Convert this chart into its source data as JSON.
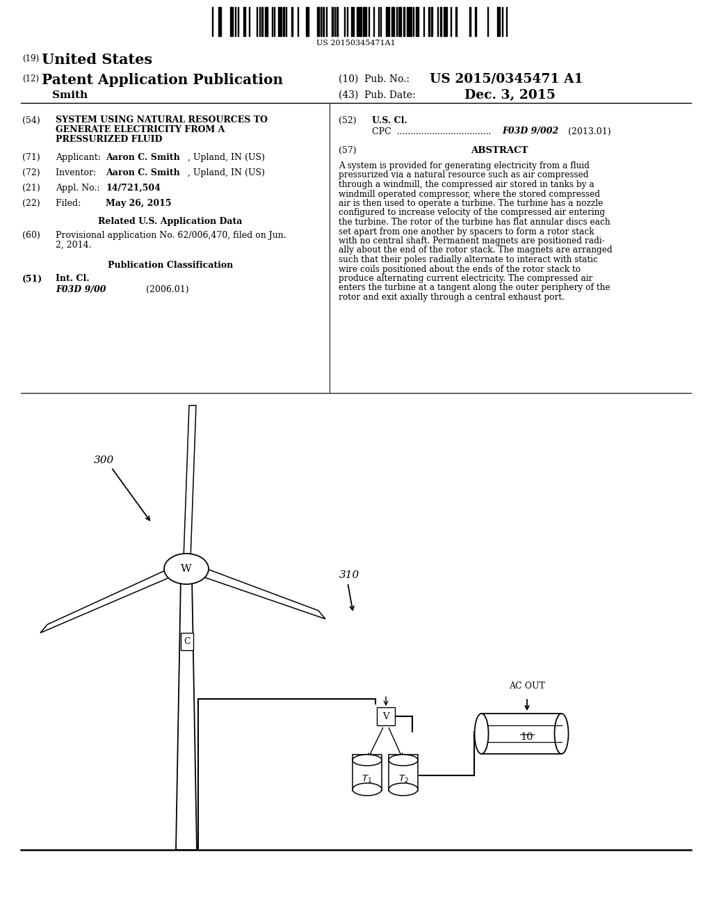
{
  "bg_color": "#ffffff",
  "barcode_text": "US 20150345471A1",
  "abstract_lines": [
    "A system is provided for generating electricity from a fluid",
    "pressurized via a natural resource such as air compressed",
    "through a windmill, the compressed air stored in tanks by a",
    "windmill operated compressor, where the stored compressed",
    "air is then used to operate a turbine. The turbine has a nozzle",
    "configured to increase velocity of the compressed air entering",
    "the turbine. The rotor of the turbine has flat annular discs each",
    "set apart from one another by spacers to form a rotor stack",
    "with no central shaft. Permanent magnets are positioned radi-",
    "ally about the end of the rotor stack. The magnets are arranged",
    "such that their poles radially alternate to interact with static",
    "wire coils positioned about the ends of the rotor stack to",
    "produce alternating current electricity. The compressed air",
    "enters the turbine at a tangent along the outer periphery of the",
    "rotor and exit axially through a central exhaust port."
  ]
}
